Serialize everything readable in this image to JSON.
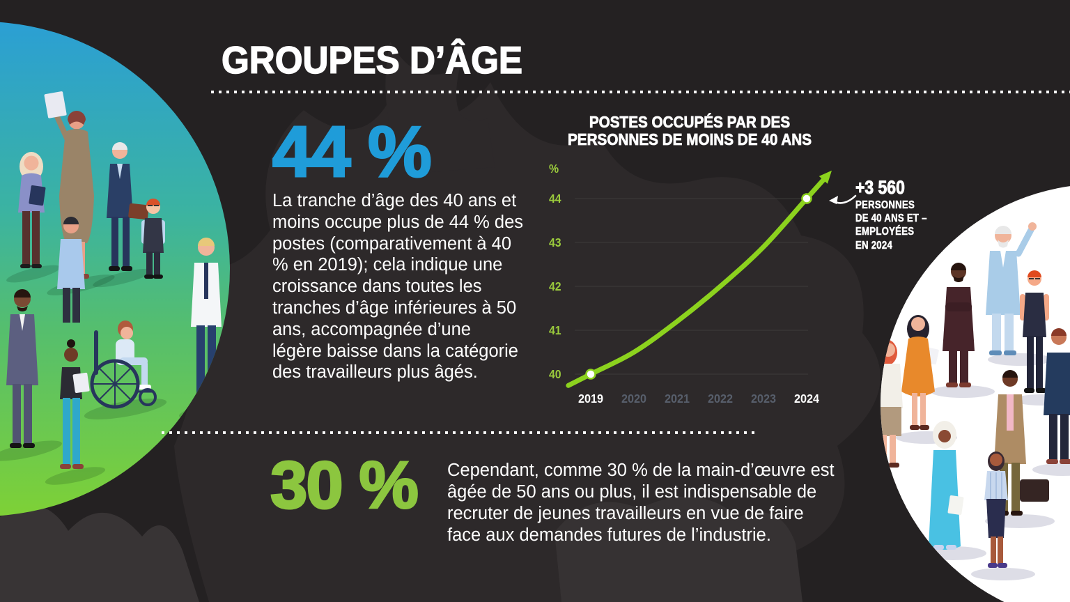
{
  "header": {
    "title": "GROUPES D’ÂGE"
  },
  "stat_44": {
    "value": "44 %",
    "color": "#1F9CD9",
    "text": "La tranche d’âge des 40 ans et moins occupe plus de 44 % des postes (comparativement à 40 % en 2019); cela indique une croissance dans toutes les tranches d’âge inférieures à 50 ans, accompagnée d’une légère baisse dans la catégorie des travailleurs plus âgés."
  },
  "stat_30": {
    "value": "30 %",
    "color": "#8CC63F",
    "text": "Cependant, comme 30 % de la main-d’œuvre est âgée de 50 ans ou plus, il est indispensable de recruter de jeunes travailleurs en vue de faire face aux demandes futures de l’industrie."
  },
  "chart": {
    "title_line1": "POSTES OCCUPÉS PAR DES",
    "title_line2": "PERSONNES DE MOINS DE 40 ANS"
  },
  "annotation": {
    "headline": "+3 560",
    "lines": [
      "PERSONNES",
      "DE 40 ANS ET –",
      "EMPLOYÉES",
      "EN 2024"
    ]
  },
  "chart_data": {
    "type": "line",
    "title": "POSTES OCCUPÉS PAR DES PERSONNES DE MOINS DE 40 ANS",
    "x": [
      "2019",
      "2020",
      "2021",
      "2022",
      "2023",
      "2024"
    ],
    "series": [
      {
        "name": "Postes occupés par des personnes de moins de 40 ans (%)",
        "values": [
          40,
          40.5,
          41.2,
          42,
          42.9,
          44
        ]
      }
    ],
    "ylabel": "%",
    "ylim": [
      40,
      44
    ],
    "yticks": [
      40,
      41,
      42,
      43,
      44
    ],
    "grid": true,
    "legend": "none",
    "emphasized_x": [
      "2019",
      "2024"
    ],
    "marked_points": [
      {
        "x": "2019",
        "y": 40
      },
      {
        "x": "2024",
        "y": 44
      }
    ]
  },
  "colors": {
    "background": "#242122",
    "leaf": "#2D292A",
    "leaf_light": "#383435",
    "accent_blue": "#1F9CD9",
    "accent_green": "#8CC63F",
    "chart_line": "#8CD21E",
    "chart_label_green": "#9BCB3C",
    "muted_year": "#575E6B",
    "gridline": "#3D3A3A",
    "circle_gradient_top": "#2B9FD4",
    "circle_gradient_bottom": "#7ED136",
    "white": "#FFFFFF"
  }
}
